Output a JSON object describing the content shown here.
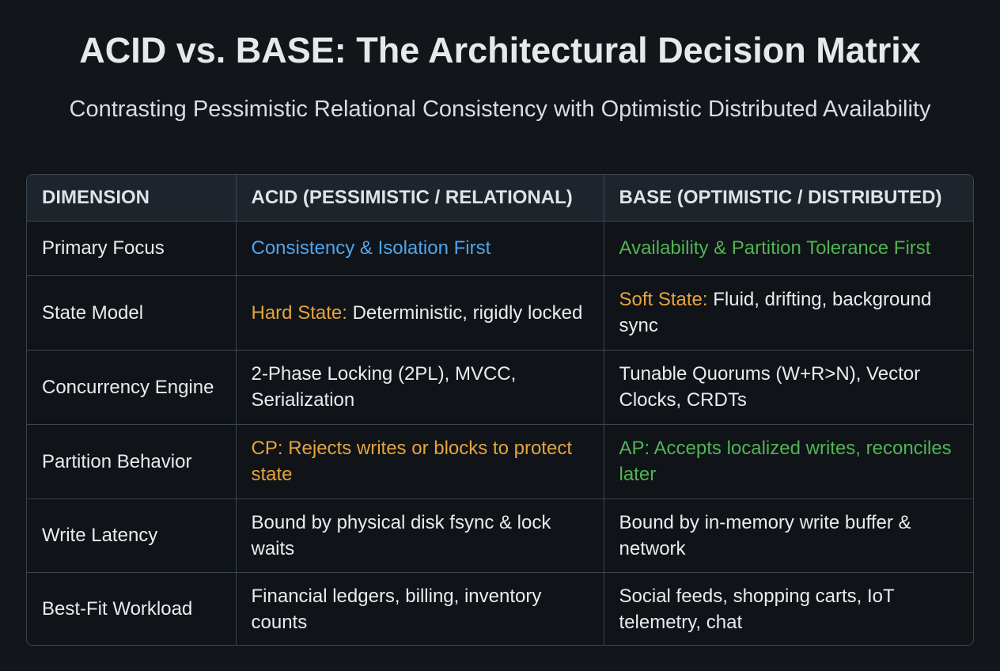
{
  "header": {
    "title": "ACID vs. BASE: The Architectural Decision Matrix",
    "subtitle": "Contrasting Pessimistic Relational Consistency with Optimistic Distributed Availability"
  },
  "table": {
    "columns": [
      "DIMENSION",
      "ACID (PESSIMISTIC / RELATIONAL)",
      "BASE (OPTIMISTIC / DISTRIBUTED)"
    ],
    "rows": [
      [
        "Primary Focus",
        "Consistency & Isolation First",
        "Availability & Partition Tolerance First"
      ],
      [
        "State Model",
        {
          "label": "Hard State:",
          "text": "Deterministic, rigidly locked"
        },
        {
          "label": "Soft State:",
          "text": "Fluid, drifting, background sync"
        }
      ],
      [
        "Concurrency Engine",
        "2-Phase Locking (2PL), MVCC, Serialization",
        "Tunable Quorums (W+R>N), Vector Clocks, CRDTs"
      ],
      [
        "Partition Behavior",
        {
          "label": "CP:",
          "text": "Rejects writes or blocks to protect state"
        },
        {
          "label": "AP:",
          "text": "Accepts localized writes, reconciles later"
        }
      ],
      [
        "Write Latency",
        "Bound by physical disk fsync & lock waits",
        "Bound by in-memory write buffer & network"
      ],
      [
        "Best-Fit Workload",
        "Financial ledgers, billing, inventory counts",
        "Social feeds, shopping carts, IoT telemetry, chat"
      ]
    ]
  }
}
